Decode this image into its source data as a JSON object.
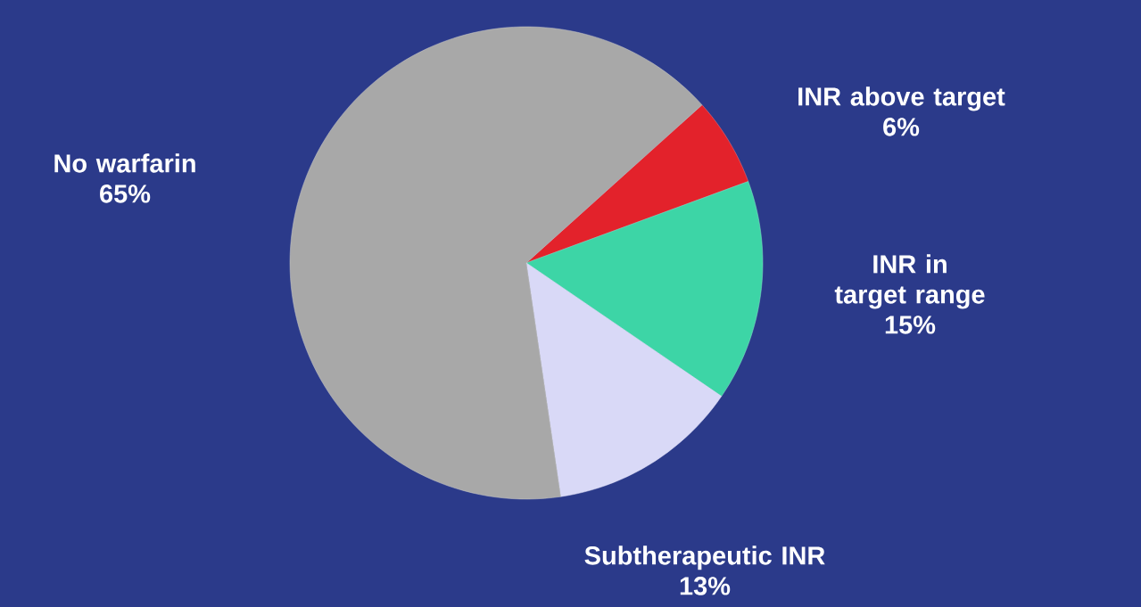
{
  "chart_data": {
    "type": "pie",
    "categories": [
      "INR above target",
      "INR in target range",
      "Subtherapeutic INR",
      "No warfarin"
    ],
    "values": [
      6,
      15,
      13,
      65
    ],
    "value_labels": [
      "6%",
      "15%",
      "13%",
      "65%"
    ],
    "colors": [
      "#e3222b",
      "#3dd5a6",
      "#d9d9f7",
      "#a8a8a8"
    ]
  }
}
